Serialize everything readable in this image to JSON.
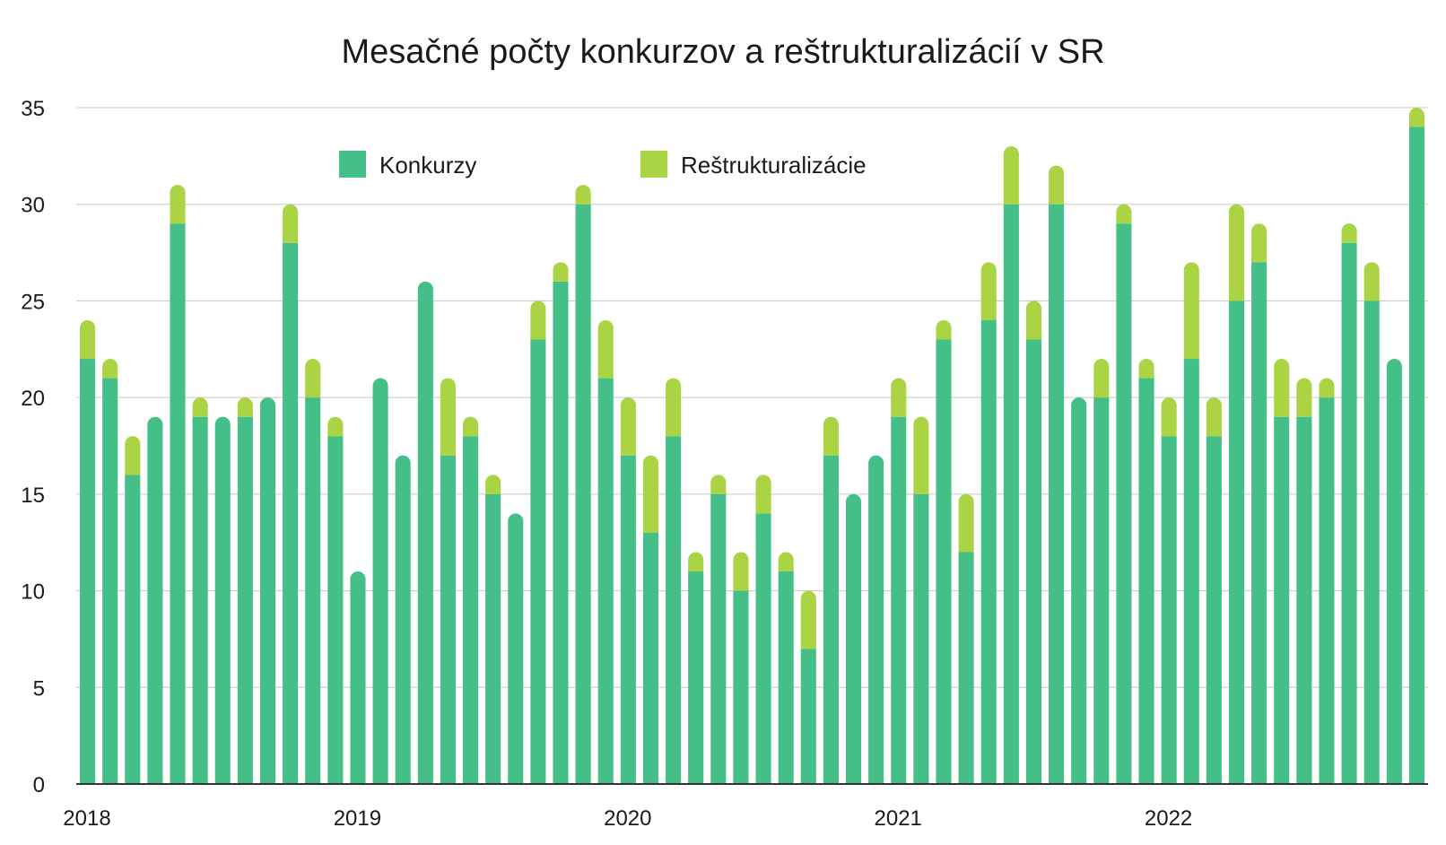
{
  "chart_data": {
    "type": "bar",
    "stacked": true,
    "title": "Mesačné počty konkurzov a reštrukturalizácií v SR",
    "xlabel": "",
    "ylabel": "",
    "ylim": [
      0,
      35
    ],
    "yticks": [
      0,
      5,
      10,
      15,
      20,
      25,
      30,
      35
    ],
    "grid": true,
    "legend": "top-center",
    "x_tick_labels": [
      {
        "label": "2018",
        "index": 0
      },
      {
        "label": "2019",
        "index": 12
      },
      {
        "label": "2020",
        "index": 24
      },
      {
        "label": "2021",
        "index": 36
      },
      {
        "label": "2022",
        "index": 48
      }
    ],
    "series": [
      {
        "name": "Konkurzy",
        "color": "#43bf87",
        "values": [
          22,
          21,
          16,
          19,
          29,
          19,
          19,
          19,
          20,
          28,
          20,
          18,
          11,
          21,
          17,
          26,
          17,
          18,
          15,
          14,
          23,
          26,
          30,
          21,
          17,
          13,
          18,
          11,
          15,
          10,
          14,
          11,
          7,
          17,
          15,
          17,
          19,
          15,
          23,
          12,
          24,
          30,
          23,
          30,
          20,
          20,
          29,
          21,
          18,
          22,
          18,
          25,
          27,
          19,
          19,
          20,
          28,
          25,
          22,
          34
        ]
      },
      {
        "name": "Reštrukturalizácie",
        "color": "#aad443",
        "values": [
          2,
          1,
          2,
          0,
          2,
          1,
          0,
          1,
          0,
          2,
          2,
          1,
          0,
          0,
          0,
          0,
          4,
          1,
          1,
          0,
          2,
          1,
          1,
          3,
          3,
          4,
          3,
          1,
          1,
          2,
          2,
          1,
          3,
          2,
          0,
          0,
          2,
          4,
          1,
          3,
          3,
          3,
          2,
          2,
          0,
          2,
          1,
          1,
          2,
          5,
          2,
          5,
          2,
          3,
          2,
          1,
          1,
          2,
          0,
          1
        ]
      }
    ]
  }
}
